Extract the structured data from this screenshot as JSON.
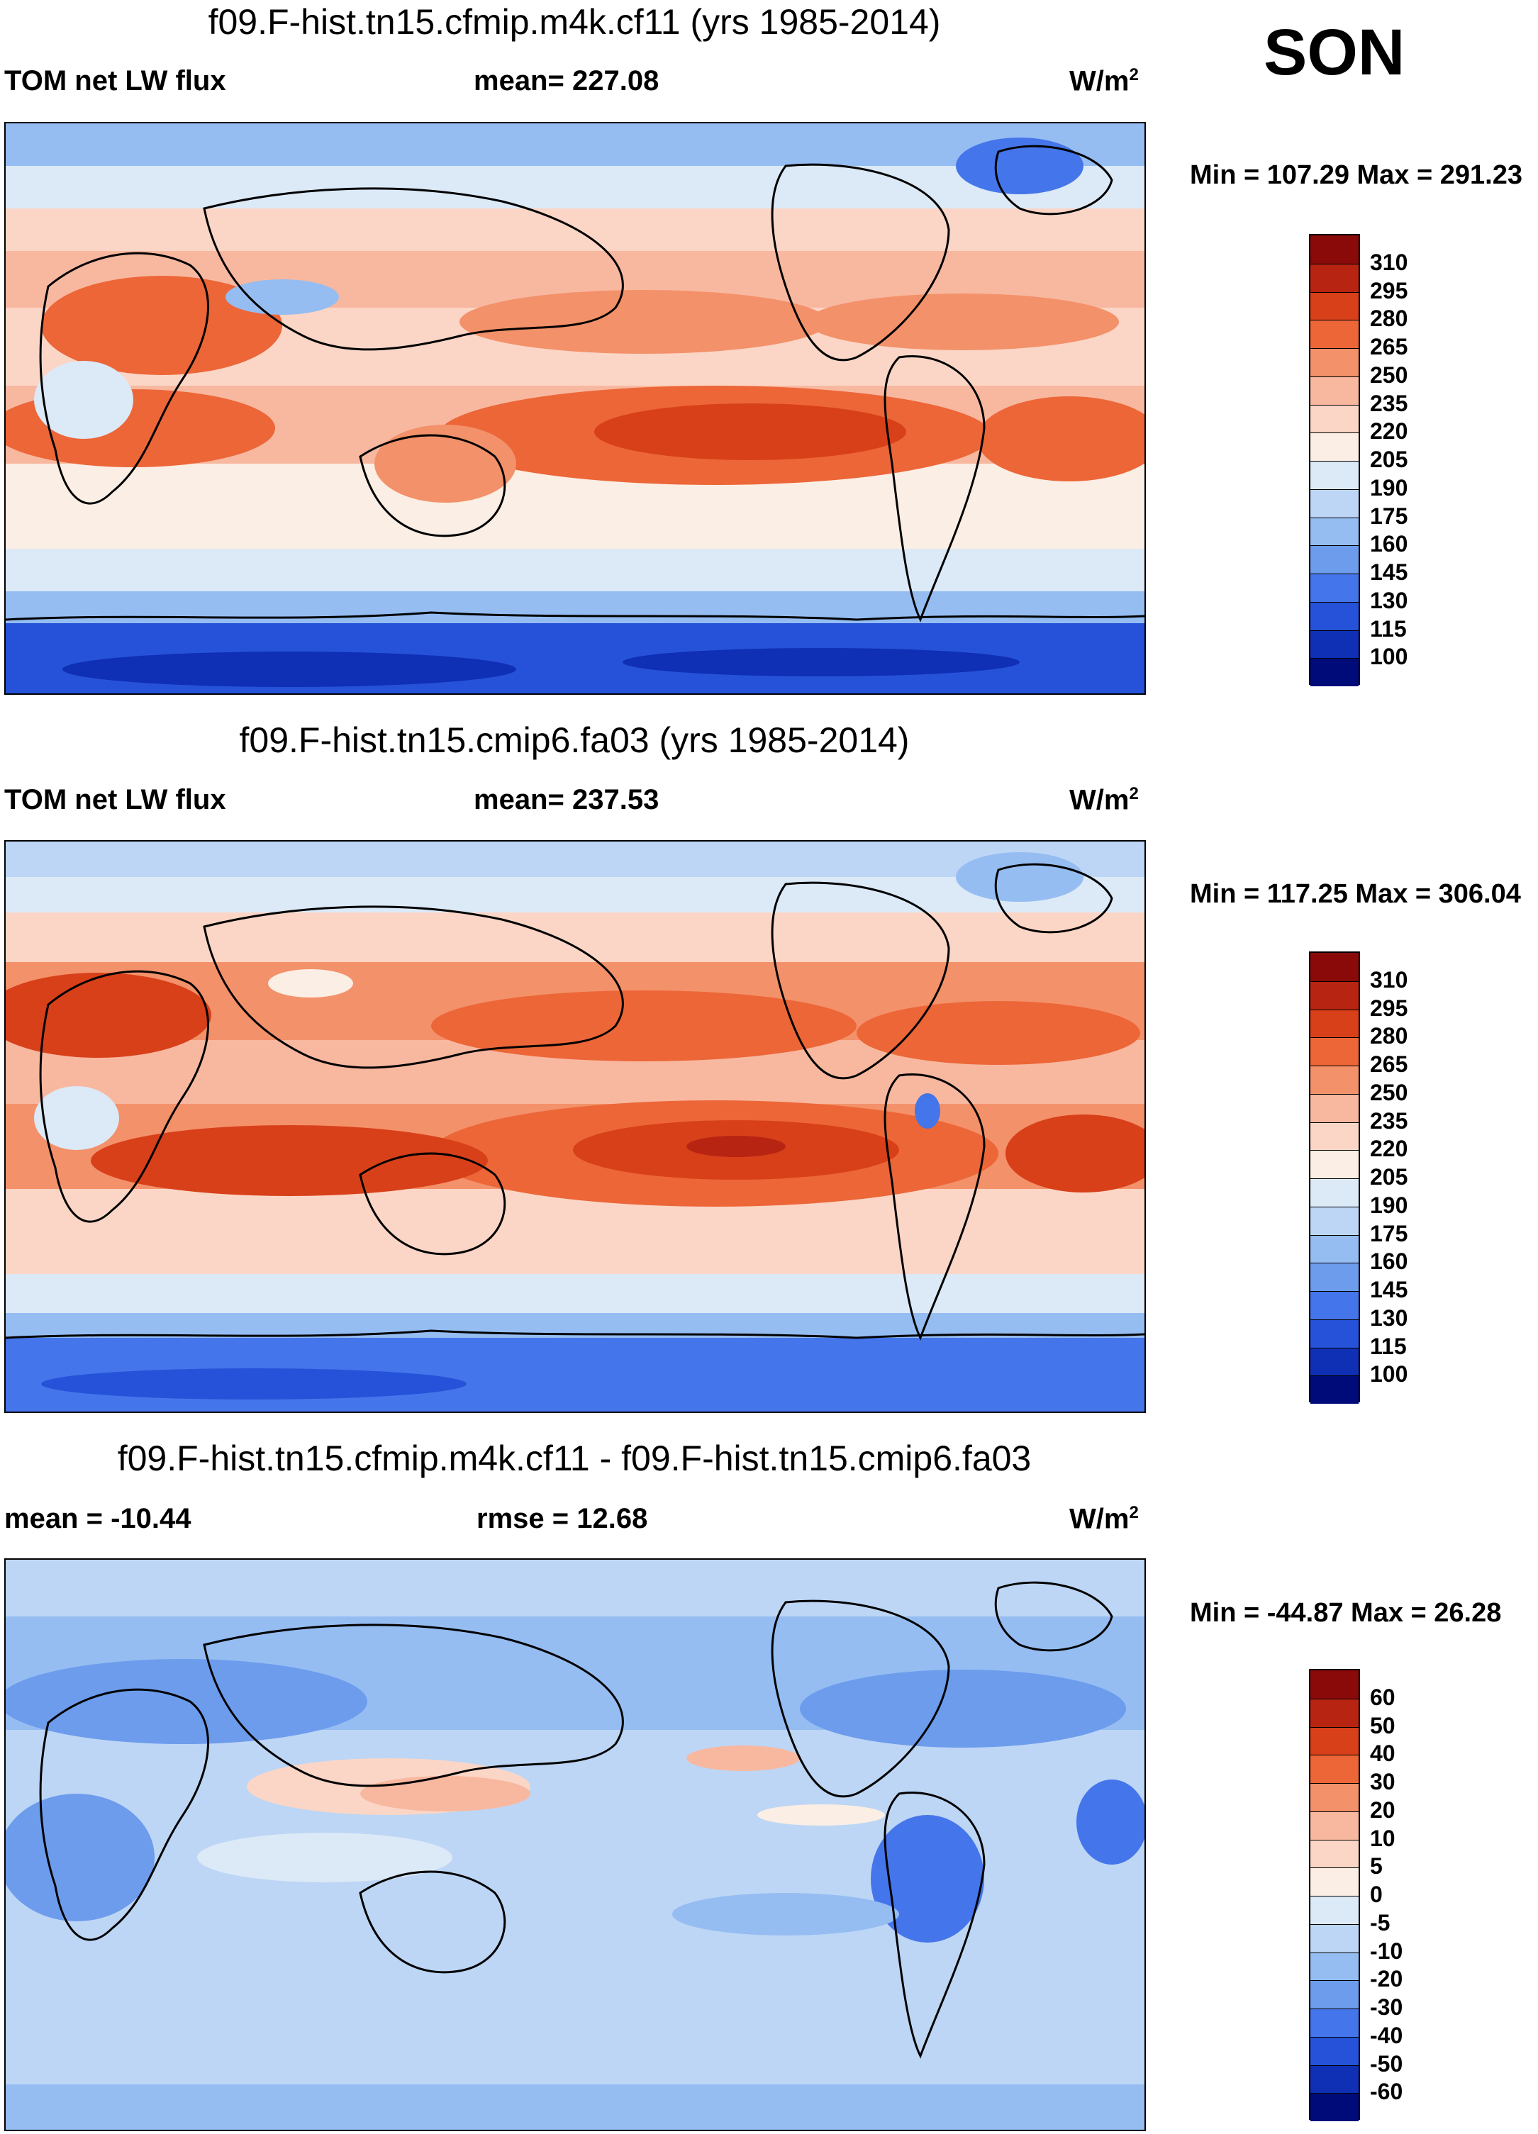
{
  "season": "SON",
  "panels": [
    {
      "title": "f09.F-hist.tn15.cfmip.m4k.cf11 (yrs 1985-2014)",
      "left_label": "TOM net LW flux",
      "center_label": "mean= 227.08",
      "units_base": "W/m",
      "units_exp": "2",
      "minmax": "Min = 107.29 Max = 291.23",
      "colorbar": {
        "ticks": [
          "310",
          "295",
          "280",
          "265",
          "250",
          "235",
          "220",
          "205",
          "190",
          "175",
          "160",
          "145",
          "130",
          "115",
          "100"
        ],
        "colors": [
          "#8a0a0a",
          "#b82412",
          "#d8401a",
          "#ec6638",
          "#f3916a",
          "#f8b8a0",
          "#fbd6c6",
          "#fbeee4",
          "#dce9f7",
          "#bdd6f5",
          "#95bdf2",
          "#6d9cec",
          "#4575ea",
          "#2552d8",
          "#0f2fb5",
          "#000b7a"
        ]
      },
      "map_values": {
        "equatorial_pacific_max": 290,
        "southern_ocean": 120
      }
    },
    {
      "title": "f09.F-hist.tn15.cmip6.fa03 (yrs 1985-2014)",
      "left_label": "TOM net LW flux",
      "center_label": "mean= 237.53",
      "units_base": "W/m",
      "units_exp": "2",
      "minmax": "Min = 117.25 Max = 306.04",
      "colorbar": {
        "ticks": [
          "310",
          "295",
          "280",
          "265",
          "250",
          "235",
          "220",
          "205",
          "190",
          "175",
          "160",
          "145",
          "130",
          "115",
          "100"
        ],
        "colors": [
          "#8a0a0a",
          "#b82412",
          "#d8401a",
          "#ec6638",
          "#f3916a",
          "#f8b8a0",
          "#fbd6c6",
          "#fbeee4",
          "#dce9f7",
          "#bdd6f5",
          "#95bdf2",
          "#6d9cec",
          "#4575ea",
          "#2552d8",
          "#0f2fb5",
          "#000b7a"
        ]
      },
      "map_values": {
        "equatorial_pacific_max": 300,
        "southern_ocean": 130
      }
    },
    {
      "title": "f09.F-hist.tn15.cfmip.m4k.cf11 - f09.F-hist.tn15.cmip6.fa03",
      "left_label": "mean = -10.44",
      "center_label": "rmse =  12.68",
      "units_base": "W/m",
      "units_exp": "2",
      "minmax": "Min = -44.87 Max =  26.28",
      "colorbar": {
        "ticks": [
          "60",
          "50",
          "40",
          "30",
          "20",
          "10",
          "5",
          "0",
          "-5",
          "-10",
          "-20",
          "-30",
          "-40",
          "-50",
          "-60"
        ],
        "colors": [
          "#8a0a0a",
          "#b82412",
          "#d8401a",
          "#ec6638",
          "#f3916a",
          "#f8b8a0",
          "#fbd6c6",
          "#fbeee4",
          "#dce9f7",
          "#bdd6f5",
          "#95bdf2",
          "#6d9cec",
          "#4575ea",
          "#2552d8",
          "#0f2fb5",
          "#000b7a"
        ]
      },
      "map_values": {
        "background_diff": -8
      }
    }
  ]
}
